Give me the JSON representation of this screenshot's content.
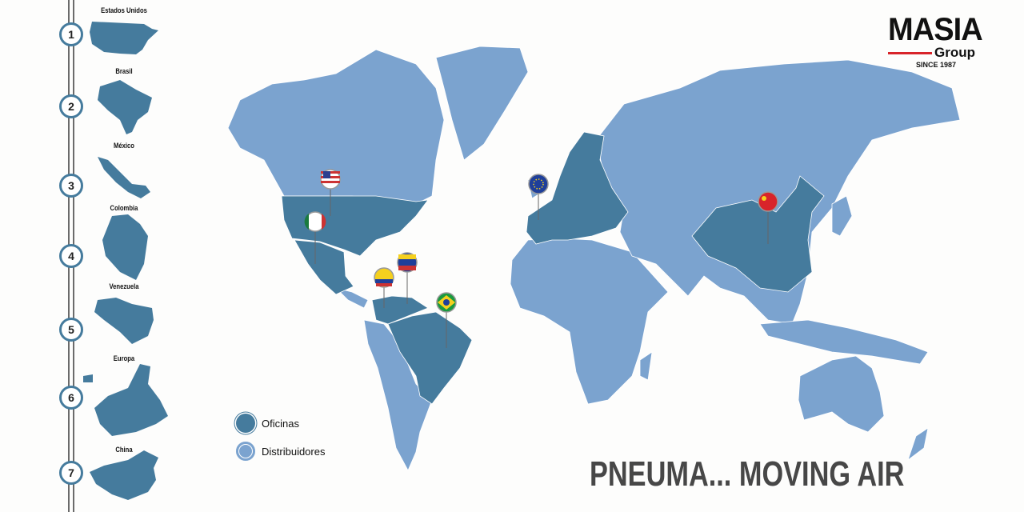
{
  "colors": {
    "oficinas": "#457b9d",
    "distribuidores": "#7ba3cf",
    "rail": "#6b6b6b",
    "logo_accent": "#d8242a"
  },
  "sidebar": {
    "items": [
      {
        "number": "1",
        "label": "Estados Unidos"
      },
      {
        "number": "2",
        "label": "Brasil"
      },
      {
        "number": "3",
        "label": "México"
      },
      {
        "number": "4",
        "label": "Colombia"
      },
      {
        "number": "5",
        "label": "Venezuela"
      },
      {
        "number": "6",
        "label": "Europa"
      },
      {
        "number": "7",
        "label": "China"
      }
    ]
  },
  "legend": {
    "oficinas": "Oficinas",
    "distribuidores": "Distribuidores"
  },
  "logo": {
    "name": "MASIA",
    "sub": "Group",
    "since": "SINCE 1987"
  },
  "slogan": "PNEUMA... MOVING AIR",
  "pins": [
    "usa-flag",
    "mexico-flag",
    "colombia-flag",
    "venezuela-flag",
    "brazil-flag",
    "eu-flag",
    "china-flag"
  ]
}
